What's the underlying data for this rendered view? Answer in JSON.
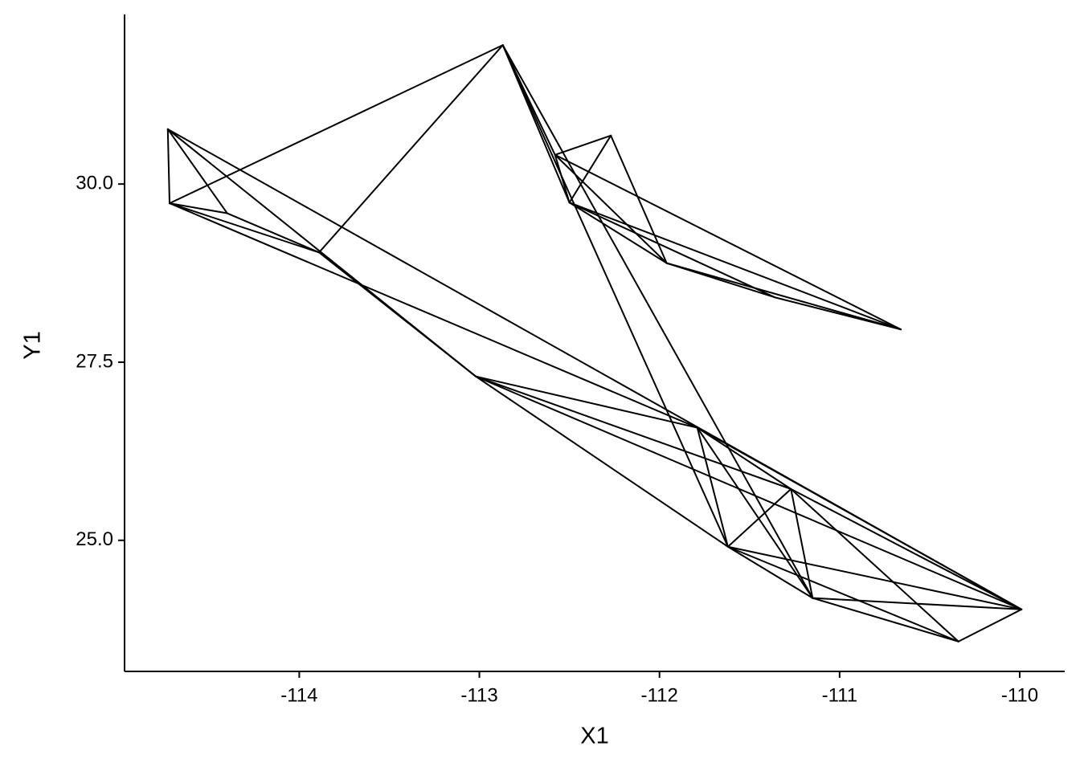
{
  "chart_data": {
    "type": "segment",
    "x_label": "X1",
    "y_label": "Y1",
    "color": "#000000",
    "grid": false,
    "xlim": [
      -114.97,
      -109.75
    ],
    "ylim": [
      23.16,
      32.38
    ],
    "xticks": [
      -114,
      -113,
      -112,
      -111,
      -110
    ],
    "yticks": [
      {
        "value": 25,
        "label": "25.0"
      },
      27.5,
      {
        "value": 30,
        "label": "30.0"
      }
    ],
    "x1": [
      -114.73,
      -114.73,
      -114.73,
      -114.72,
      -114.72,
      -114.72,
      -114.4,
      -113.89,
      -113.89,
      -114.73,
      -114.72,
      -112.87,
      -112.87,
      -112.87,
      -112.87,
      -112.58,
      -112.58,
      -112.27,
      -112.58,
      -112.58,
      -112.5,
      -112.5,
      -112.5,
      -111.96,
      -111.36,
      -111.96,
      -112.27,
      -113.02,
      -113.02,
      -113.02,
      -113.02,
      -111.79,
      -111.79,
      -111.79,
      -111.79,
      -111.62,
      -111.62,
      -111.62,
      -111.62,
      -111.27,
      -111.27,
      -111.27,
      -111.15,
      -111.15,
      -110.34
    ],
    "y1": [
      30.77,
      30.77,
      30.77,
      29.73,
      29.73,
      29.73,
      29.59,
      29.04,
      29.04,
      30.77,
      29.73,
      31.95,
      31.95,
      31.95,
      31.95,
      30.41,
      30.41,
      30.68,
      30.41,
      30.41,
      29.74,
      29.74,
      29.74,
      28.89,
      28.41,
      28.89,
      30.68,
      27.3,
      27.3,
      27.3,
      27.3,
      26.58,
      26.58,
      26.58,
      26.58,
      24.91,
      24.91,
      24.91,
      24.91,
      25.72,
      25.72,
      25.72,
      24.19,
      24.19,
      23.58
    ],
    "x2": [
      -114.72,
      -114.4,
      -113.02,
      -114.4,
      -112.87,
      -113.89,
      -113.89,
      -112.87,
      -113.02,
      -109.99,
      -111.79,
      -112.58,
      -112.5,
      -111.62,
      -111.15,
      -112.27,
      -112.5,
      -112.5,
      -111.96,
      -110.66,
      -111.96,
      -111.36,
      -110.66,
      -111.36,
      -110.66,
      -110.66,
      -111.96,
      -111.79,
      -111.27,
      -111.62,
      -109.99,
      -111.62,
      -111.27,
      -111.15,
      -109.99,
      -111.27,
      -111.15,
      -110.34,
      -109.99,
      -111.15,
      -110.34,
      -109.99,
      -110.34,
      -109.99,
      -109.99
    ],
    "y2": [
      29.73,
      29.59,
      27.3,
      29.59,
      31.95,
      29.04,
      29.04,
      31.95,
      27.3,
      24.03,
      26.58,
      30.41,
      29.74,
      24.91,
      24.19,
      30.68,
      29.74,
      29.74,
      28.89,
      27.96,
      28.89,
      28.41,
      27.96,
      28.41,
      27.96,
      27.96,
      28.89,
      26.58,
      25.72,
      24.91,
      24.03,
      24.91,
      25.72,
      24.19,
      24.03,
      25.72,
      24.19,
      23.58,
      24.03,
      24.19,
      23.58,
      24.03,
      23.58,
      24.03,
      24.03
    ]
  }
}
